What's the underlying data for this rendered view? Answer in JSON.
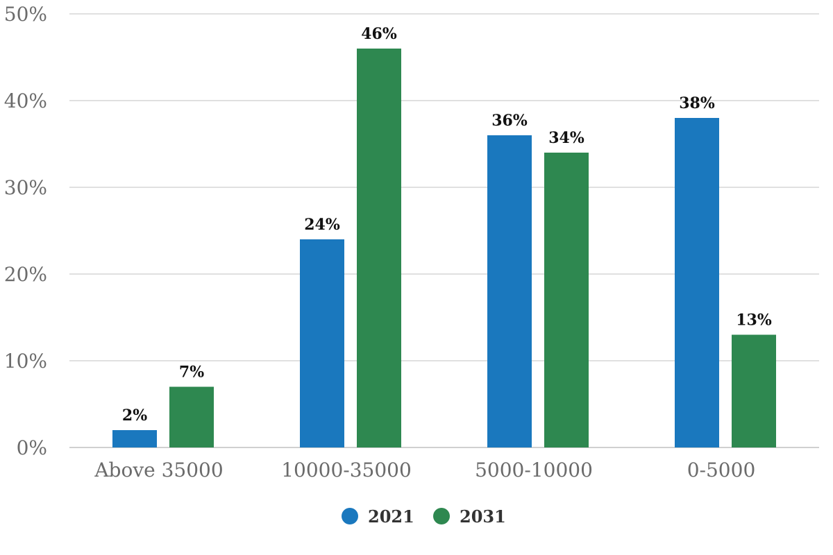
{
  "chart_data": {
    "type": "bar",
    "categories": [
      "Above 35000",
      "10000-35000",
      "5000-10000",
      "0-5000"
    ],
    "series": [
      {
        "name": "2021",
        "values": [
          2,
          24,
          36,
          38
        ],
        "color": "#1a78be"
      },
      {
        "name": "2031",
        "values": [
          7,
          46,
          34,
          13
        ],
        "color": "#2e8850"
      }
    ],
    "ylim": [
      0,
      50
    ],
    "yticks": [
      0,
      10,
      20,
      30,
      40,
      50
    ],
    "tick_suffix": "%",
    "data_label_suffix": "%",
    "grid": true,
    "legend": "bottom-center",
    "colors": {
      "grid": "#e0e0e0",
      "axis": "#d0d0d0"
    }
  }
}
